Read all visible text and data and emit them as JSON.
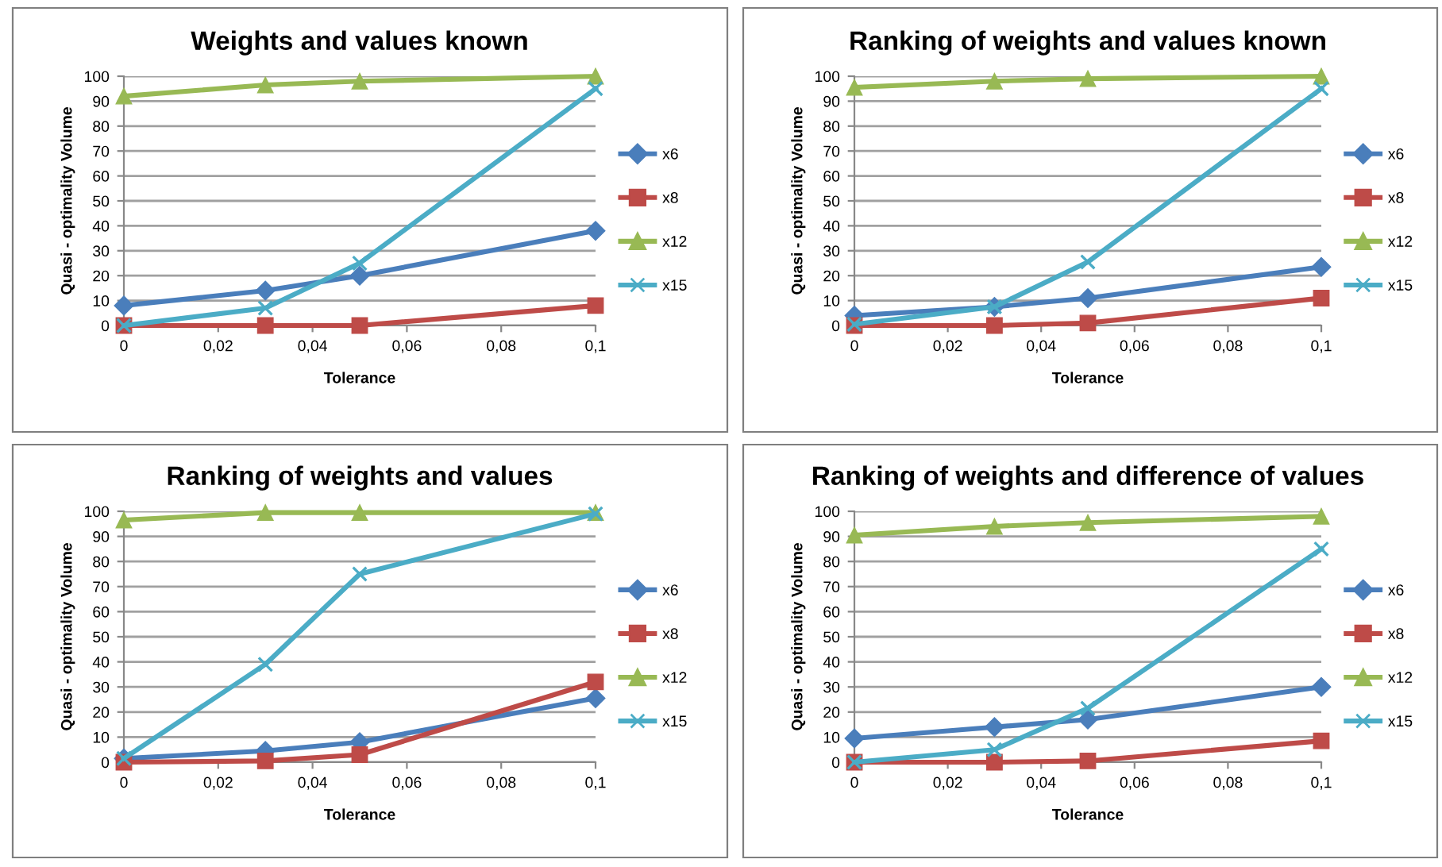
{
  "chart_data": [
    {
      "type": "line",
      "title": "Weights and values known",
      "xlabel": "Tolerance",
      "ylabel": "Quasi - optimality Volume",
      "x": [
        0,
        0.03,
        0.05,
        0.1
      ],
      "xlim": [
        0,
        0.1
      ],
      "xticks": [
        0,
        {
          "value": 0.02,
          "label": "0,02"
        },
        {
          "value": 0.04,
          "label": "0,04"
        },
        {
          "value": 0.06,
          "label": "0,06"
        },
        {
          "value": 0.08,
          "label": "0,08"
        },
        {
          "value": 0.1,
          "label": "0,1"
        }
      ],
      "ylim": [
        0,
        100
      ],
      "yticks": [
        0,
        10,
        20,
        30,
        40,
        50,
        60,
        70,
        80,
        90,
        100
      ],
      "grid": "y",
      "legend": "right",
      "series": [
        {
          "name": "x6",
          "color": "#4a7ebb",
          "marker": "diamond",
          "values": [
            8,
            14,
            20,
            38
          ]
        },
        {
          "name": "x8",
          "color": "#be4b48",
          "marker": "square",
          "values": [
            0,
            0,
            0,
            8
          ]
        },
        {
          "name": "x12",
          "color": "#98b954",
          "marker": "triangle",
          "values": [
            92,
            96.5,
            98,
            100
          ]
        },
        {
          "name": "x15",
          "color": "#4bacc6",
          "marker": "cross",
          "values": [
            0,
            7,
            25,
            95
          ]
        }
      ]
    },
    {
      "type": "line",
      "title": "Ranking of weights and values known",
      "xlabel": "Tolerance",
      "ylabel": "Quasi - optimality Volume",
      "x": [
        0,
        0.03,
        0.05,
        0.1
      ],
      "xlim": [
        0,
        0.1
      ],
      "xticks": [
        0,
        {
          "value": 0.02,
          "label": "0,02"
        },
        {
          "value": 0.04,
          "label": "0,04"
        },
        {
          "value": 0.06,
          "label": "0,06"
        },
        {
          "value": 0.08,
          "label": "0,08"
        },
        {
          "value": 0.1,
          "label": "0,1"
        }
      ],
      "ylim": [
        0,
        100
      ],
      "yticks": [
        0,
        10,
        20,
        30,
        40,
        50,
        60,
        70,
        80,
        90,
        100
      ],
      "grid": "y",
      "legend": "right",
      "series": [
        {
          "name": "x6",
          "color": "#4a7ebb",
          "marker": "diamond",
          "values": [
            4,
            7.5,
            11,
            23.5
          ]
        },
        {
          "name": "x8",
          "color": "#be4b48",
          "marker": "square",
          "values": [
            0,
            0,
            1,
            11
          ]
        },
        {
          "name": "x12",
          "color": "#98b954",
          "marker": "triangle",
          "values": [
            95.5,
            98,
            99,
            100
          ]
        },
        {
          "name": "x15",
          "color": "#4bacc6",
          "marker": "cross",
          "values": [
            0.5,
            7.5,
            25.5,
            95
          ]
        }
      ]
    },
    {
      "type": "line",
      "title": "Ranking of weights and values",
      "xlabel": "Tolerance",
      "ylabel": "Quasi - optimality Volume",
      "x": [
        0,
        0.03,
        0.05,
        0.1
      ],
      "xlim": [
        0,
        0.1
      ],
      "xticks": [
        0,
        {
          "value": 0.02,
          "label": "0,02"
        },
        {
          "value": 0.04,
          "label": "0,04"
        },
        {
          "value": 0.06,
          "label": "0,06"
        },
        {
          "value": 0.08,
          "label": "0,08"
        },
        {
          "value": 0.1,
          "label": "0,1"
        }
      ],
      "ylim": [
        0,
        100
      ],
      "yticks": [
        0,
        10,
        20,
        30,
        40,
        50,
        60,
        70,
        80,
        90,
        100
      ],
      "grid": "y",
      "legend": "right",
      "series": [
        {
          "name": "x6",
          "color": "#4a7ebb",
          "marker": "diamond",
          "values": [
            1.5,
            4.5,
            8,
            25.5
          ]
        },
        {
          "name": "x8",
          "color": "#be4b48",
          "marker": "square",
          "values": [
            0,
            0.5,
            3,
            32
          ]
        },
        {
          "name": "x12",
          "color": "#98b954",
          "marker": "triangle",
          "values": [
            96.5,
            99.5,
            99.5,
            99.5
          ]
        },
        {
          "name": "x15",
          "color": "#4bacc6",
          "marker": "cross",
          "values": [
            1.5,
            39,
            75,
            99
          ]
        }
      ]
    },
    {
      "type": "line",
      "title": "Ranking of weights and difference of values",
      "xlabel": "Tolerance",
      "ylabel": "Quasi - optimality Volume",
      "x": [
        0,
        0.03,
        0.05,
        0.1
      ],
      "xlim": [
        0,
        0.1
      ],
      "xticks": [
        0,
        {
          "value": 0.02,
          "label": "0,02"
        },
        {
          "value": 0.04,
          "label": "0,04"
        },
        {
          "value": 0.06,
          "label": "0,06"
        },
        {
          "value": 0.08,
          "label": "0,08"
        },
        {
          "value": 0.1,
          "label": "0,1"
        }
      ],
      "ylim": [
        0,
        100
      ],
      "yticks": [
        0,
        10,
        20,
        30,
        40,
        50,
        60,
        70,
        80,
        90,
        100
      ],
      "grid": "y",
      "legend": "right",
      "series": [
        {
          "name": "x6",
          "color": "#4a7ebb",
          "marker": "diamond",
          "values": [
            9.5,
            14,
            17,
            30
          ]
        },
        {
          "name": "x8",
          "color": "#be4b48",
          "marker": "square",
          "values": [
            0,
            0,
            0.5,
            8.5
          ]
        },
        {
          "name": "x12",
          "color": "#98b954",
          "marker": "triangle",
          "values": [
            90.5,
            94,
            95.5,
            98
          ]
        },
        {
          "name": "x15",
          "color": "#4bacc6",
          "marker": "cross",
          "values": [
            0,
            5,
            21.5,
            85
          ]
        }
      ]
    }
  ]
}
